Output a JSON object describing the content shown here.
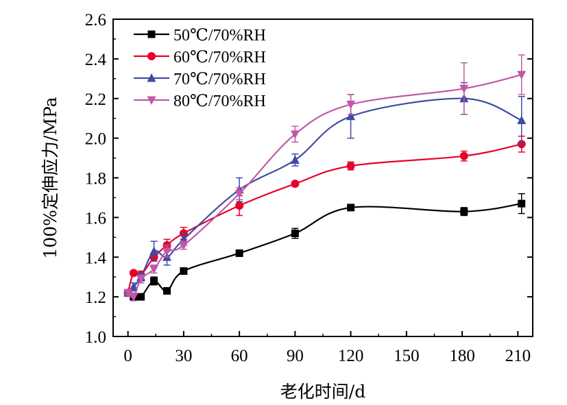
{
  "chart_data": {
    "type": "line",
    "xlabel": "老化时间/d",
    "ylabel": "100%定伸应力/MPa",
    "xlim": [
      -8,
      218
    ],
    "ylim": [
      1.0,
      2.6
    ],
    "xticks": [
      0,
      30,
      60,
      90,
      120,
      150,
      180,
      210
    ],
    "yticks": [
      1.0,
      1.2,
      1.4,
      1.6,
      1.8,
      2.0,
      2.2,
      2.4,
      2.6
    ],
    "ytick_labels": [
      "1.0",
      "1.2",
      "1.4",
      "1.6",
      "1.8",
      "2.0",
      "2.2",
      "2.4",
      "2.6"
    ],
    "grid": false,
    "legend_position": "top-left",
    "series": [
      {
        "name": "50℃/70%RH",
        "color": "#000000",
        "marker": "square",
        "x": [
          0,
          3,
          7,
          14,
          21,
          30,
          60,
          90,
          120,
          181,
          212
        ],
        "y": [
          1.22,
          1.2,
          1.2,
          1.28,
          1.23,
          1.33,
          1.42,
          1.52,
          1.65,
          1.63,
          1.67
        ],
        "err": [
          0.01,
          0.01,
          0.01,
          0.02,
          0.015,
          0.015,
          0.01,
          0.025,
          0.01,
          0.02,
          0.05
        ]
      },
      {
        "name": "60℃/70%RH",
        "color": "#e8002a",
        "marker": "circle",
        "x": [
          0,
          3,
          7,
          14,
          21,
          30,
          60,
          90,
          120,
          181,
          212
        ],
        "y": [
          1.22,
          1.32,
          1.31,
          1.4,
          1.46,
          1.52,
          1.66,
          1.77,
          1.86,
          1.91,
          1.97
        ],
        "err": [
          0.01,
          0.01,
          0.02,
          0.02,
          0.03,
          0.03,
          0.05,
          0.01,
          0.02,
          0.025,
          0.04
        ]
      },
      {
        "name": "70℃/70%RH",
        "color": "#3e4ba3",
        "marker": "triangle-up",
        "x": [
          0,
          3,
          7,
          14,
          21,
          30,
          60,
          90,
          120,
          181,
          212
        ],
        "y": [
          1.22,
          1.25,
          1.3,
          1.43,
          1.4,
          1.49,
          1.74,
          1.89,
          2.11,
          2.2,
          2.09
        ],
        "err": [
          0.01,
          0.02,
          0.02,
          0.05,
          0.04,
          0.03,
          0.06,
          0.03,
          0.11,
          0.08,
          0.12
        ]
      },
      {
        "name": "80℃/70%RH",
        "color": "#bf58a8",
        "marker": "triangle-down",
        "x": [
          0,
          3,
          7,
          14,
          21,
          30,
          60,
          90,
          120,
          181,
          212
        ],
        "y": [
          1.22,
          1.2,
          1.29,
          1.34,
          1.43,
          1.46,
          1.72,
          2.02,
          2.17,
          2.25,
          2.32
        ],
        "err": [
          0.01,
          0.02,
          0.02,
          0.02,
          0.03,
          0.02,
          0.03,
          0.04,
          0.05,
          0.13,
          0.1
        ]
      }
    ]
  }
}
